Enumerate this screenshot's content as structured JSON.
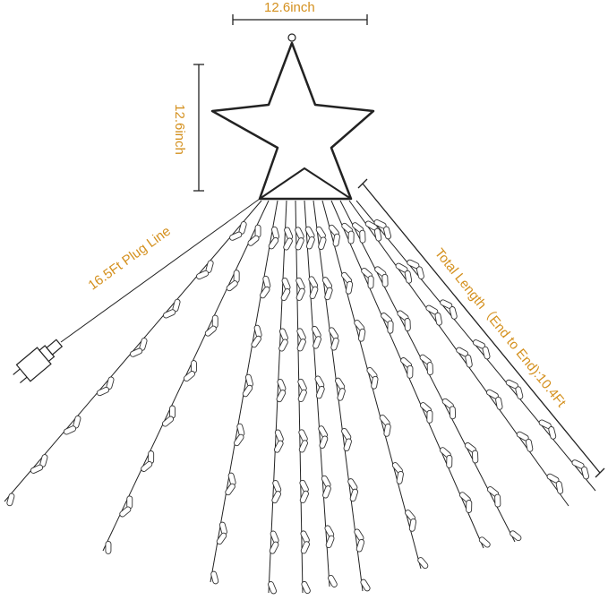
{
  "labels": {
    "star_width": "12.6inch",
    "star_height": "12.6inch",
    "plug_line": "16.5Ft Plug Line",
    "total_length": "Total Length（End to End):10.4Ft"
  },
  "colors": {
    "label": "#d4901e",
    "line": "#222222"
  },
  "icons": {
    "star": "star-topper-icon",
    "plug": "power-adapter-icon",
    "bulb": "led-bulb-icon"
  }
}
